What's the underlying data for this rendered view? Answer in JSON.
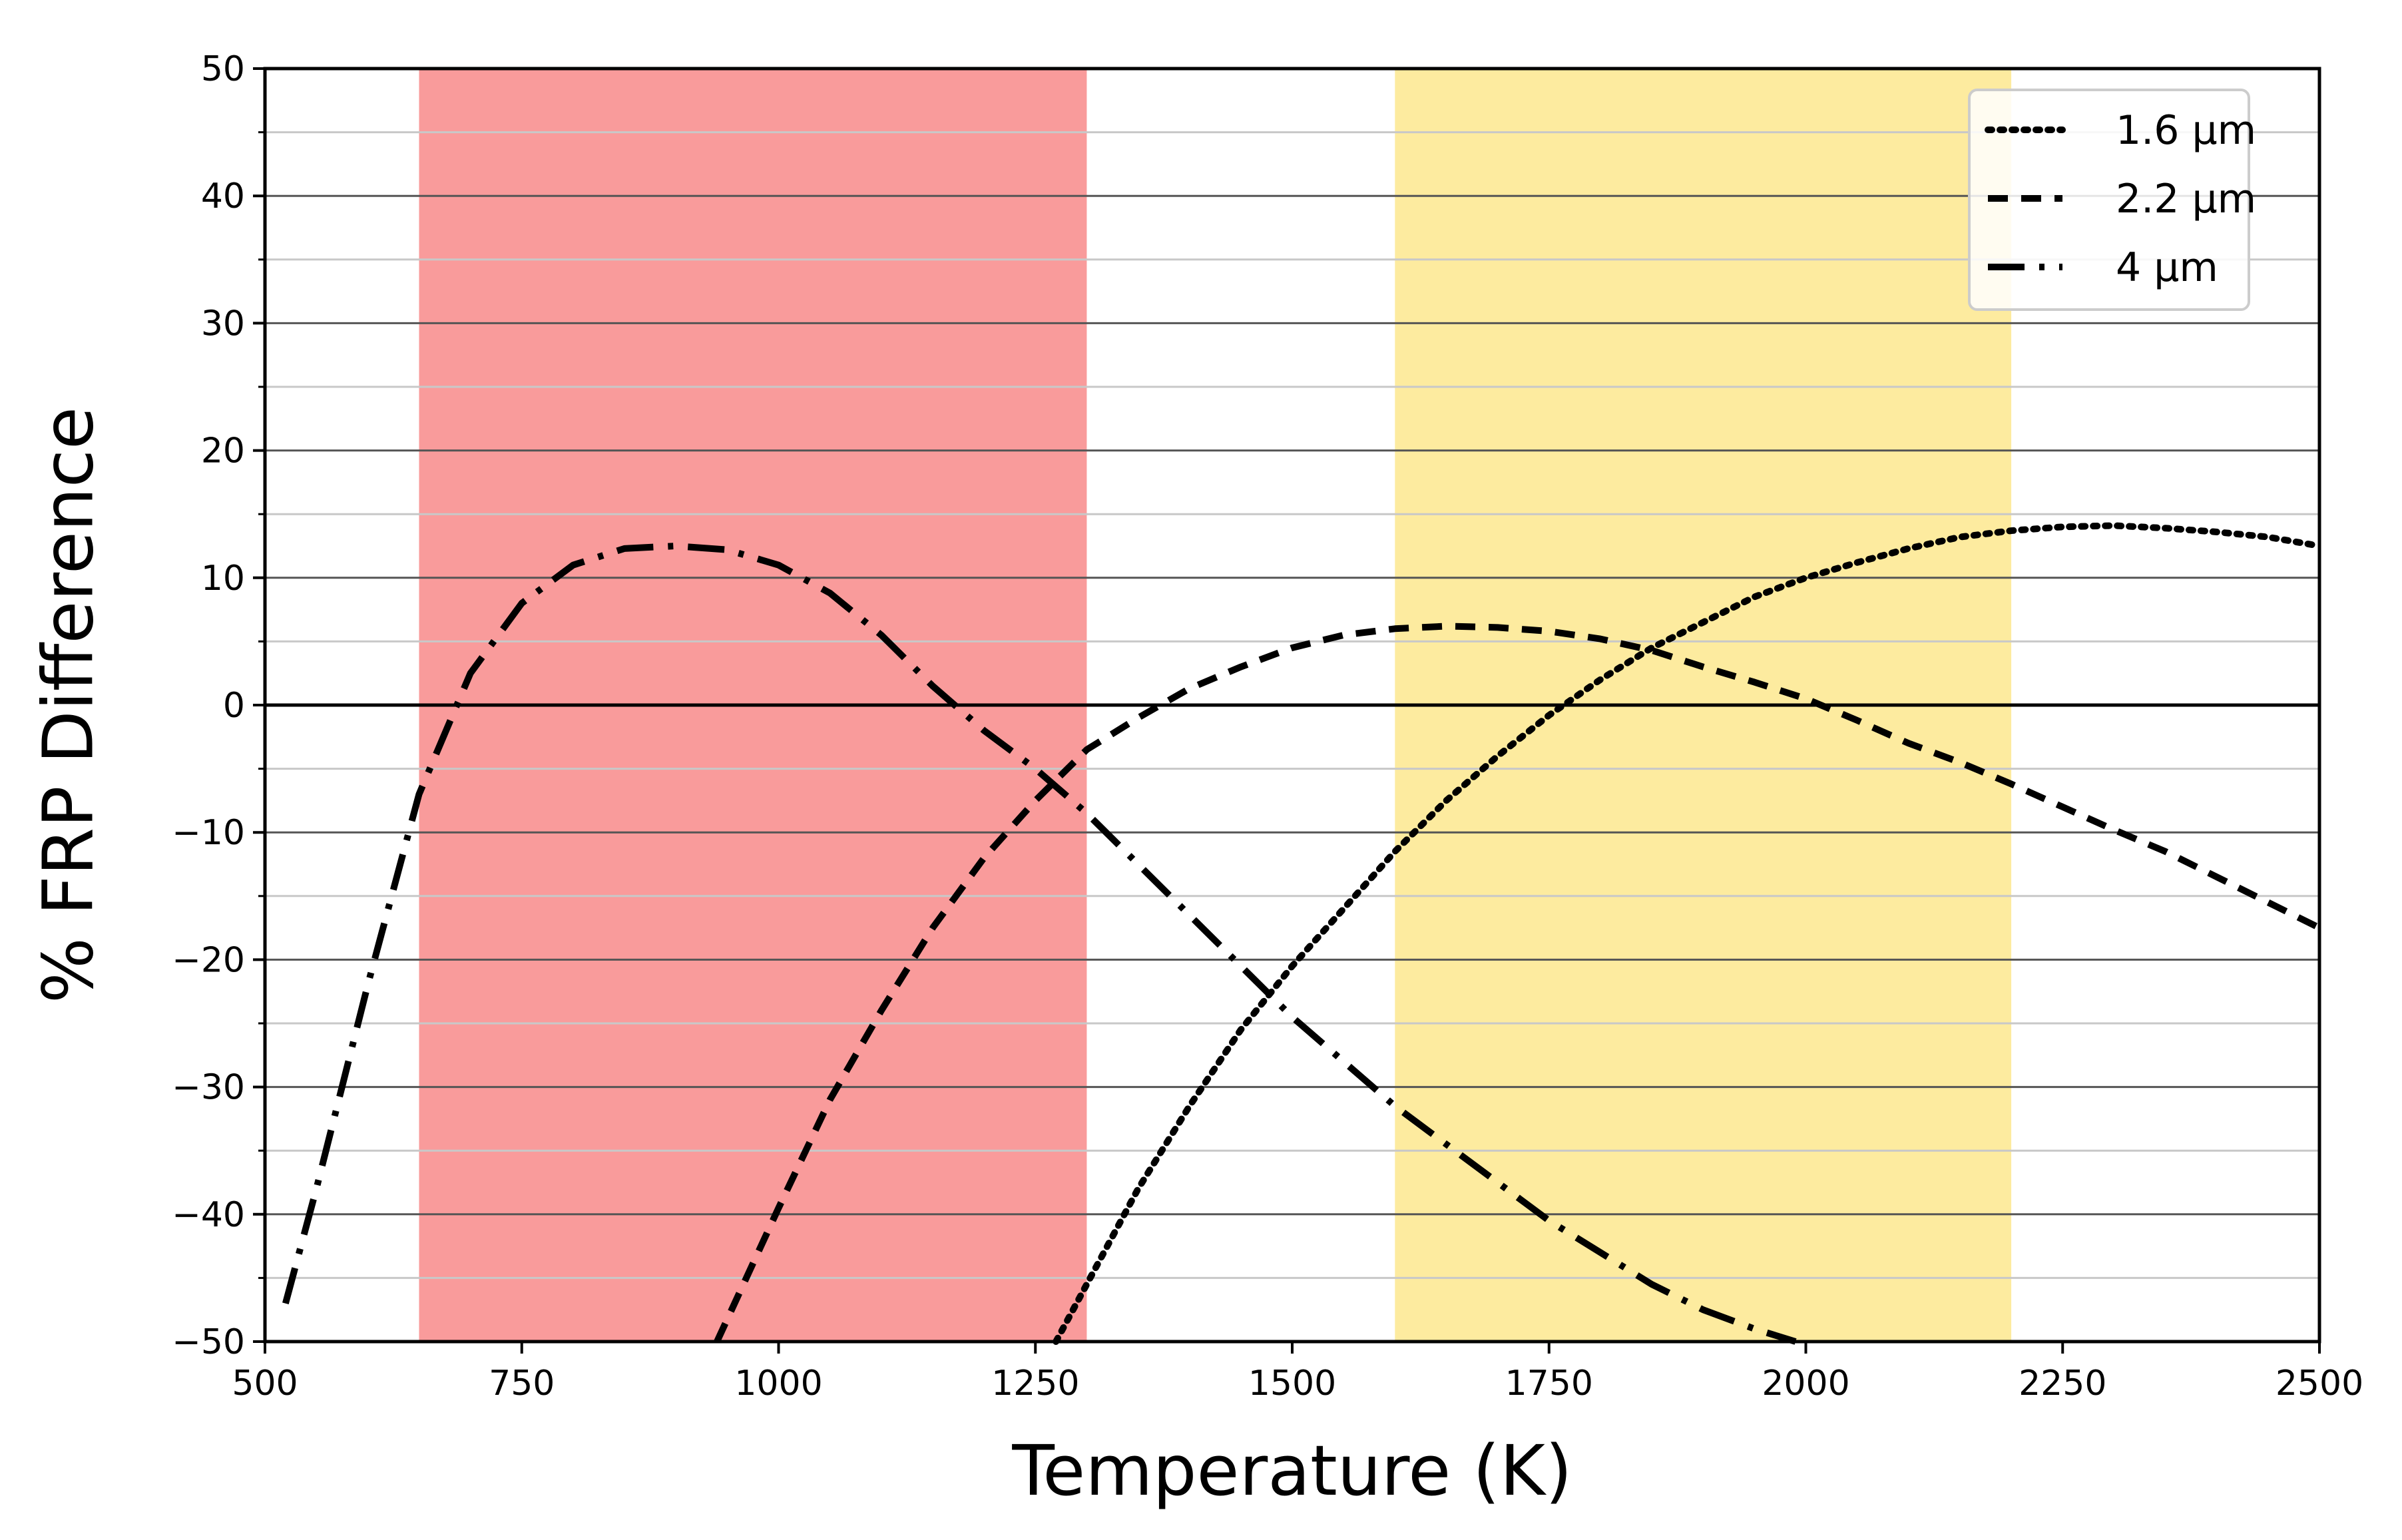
{
  "chart_data": {
    "type": "line",
    "title": "",
    "xlabel": "Temperature (K)",
    "ylabel": "% FRP Difference",
    "xlim": [
      500,
      2500
    ],
    "ylim": [
      -50,
      50
    ],
    "x_ticks": [
      500,
      750,
      1000,
      1250,
      1500,
      1750,
      2000,
      2250,
      2500
    ],
    "y_ticks": [
      50,
      40,
      30,
      20,
      10,
      0,
      -10,
      -20,
      -30,
      -40,
      -50
    ],
    "x_tick_labels": [
      "500",
      "750",
      "1000",
      "1250",
      "1500",
      "1750",
      "2000",
      "2250",
      "2500"
    ],
    "y_tick_labels": [
      "50",
      "40",
      "30",
      "20",
      "10",
      "0",
      "−10",
      "−20",
      "−30",
      "−40",
      "−50"
    ],
    "minor_y_step": 5,
    "grid": "horizontal",
    "legend_position": "top-right",
    "shaded_regions": [
      {
        "name": "red-band",
        "x_start": 650,
        "x_end": 1300,
        "color": "#f99b9b"
      },
      {
        "name": "yellow-band",
        "x_start": 1600,
        "x_end": 2200,
        "color": "#fdeb9f"
      }
    ],
    "series": [
      {
        "name": "1.6 μm",
        "style": "dotted",
        "x": [
          1270,
          1300,
          1350,
          1400,
          1450,
          1500,
          1550,
          1600,
          1650,
          1700,
          1750,
          1800,
          1850,
          1900,
          1950,
          2000,
          2050,
          2100,
          2150,
          2200,
          2250,
          2300,
          2350,
          2400,
          2450,
          2500
        ],
        "values": [
          -50,
          -45.5,
          -38,
          -31.5,
          -25.5,
          -20.5,
          -16,
          -11.5,
          -7.5,
          -4,
          -0.8,
          2,
          4.5,
          6.5,
          8.5,
          10,
          11.2,
          12.3,
          13.2,
          13.7,
          14,
          14.1,
          13.9,
          13.6,
          13.2,
          12.5
        ]
      },
      {
        "name": "2.2 μm",
        "style": "dashed",
        "x": [
          940,
          1000,
          1050,
          1100,
          1150,
          1200,
          1250,
          1300,
          1350,
          1400,
          1450,
          1500,
          1550,
          1600,
          1650,
          1700,
          1750,
          1800,
          1850,
          1900,
          1950,
          2000,
          2050,
          2100,
          2150,
          2200,
          2250,
          2300,
          2350,
          2400,
          2450,
          2500
        ],
        "values": [
          -50,
          -39.5,
          -31,
          -24,
          -17.5,
          -12,
          -7.5,
          -3.5,
          -1,
          1.3,
          3,
          4.5,
          5.5,
          6,
          6.2,
          6.1,
          5.8,
          5.2,
          4.3,
          3,
          1.8,
          0.5,
          -1.2,
          -3,
          -4.5,
          -6.2,
          -8,
          -9.8,
          -11.5,
          -13.5,
          -15.5,
          -17.5
        ]
      },
      {
        "name": "4 μm",
        "style": "dashdot",
        "x": [
          520,
          550,
          600,
          650,
          700,
          750,
          800,
          850,
          900,
          950,
          1000,
          1050,
          1100,
          1150,
          1200,
          1250,
          1300,
          1350,
          1400,
          1450,
          1500,
          1550,
          1600,
          1650,
          1700,
          1750,
          1800,
          1850,
          1900,
          1950,
          1990
        ],
        "values": [
          -47,
          -38,
          -22,
          -7,
          2.5,
          8,
          11,
          12.3,
          12.5,
          12.2,
          11,
          8.8,
          5.5,
          1.5,
          -2,
          -5,
          -8.5,
          -12.5,
          -16.5,
          -20.5,
          -24.5,
          -28,
          -31.5,
          -34.5,
          -37.5,
          -40.5,
          -43,
          -45.5,
          -47.5,
          -49,
          -50
        ]
      }
    ]
  }
}
